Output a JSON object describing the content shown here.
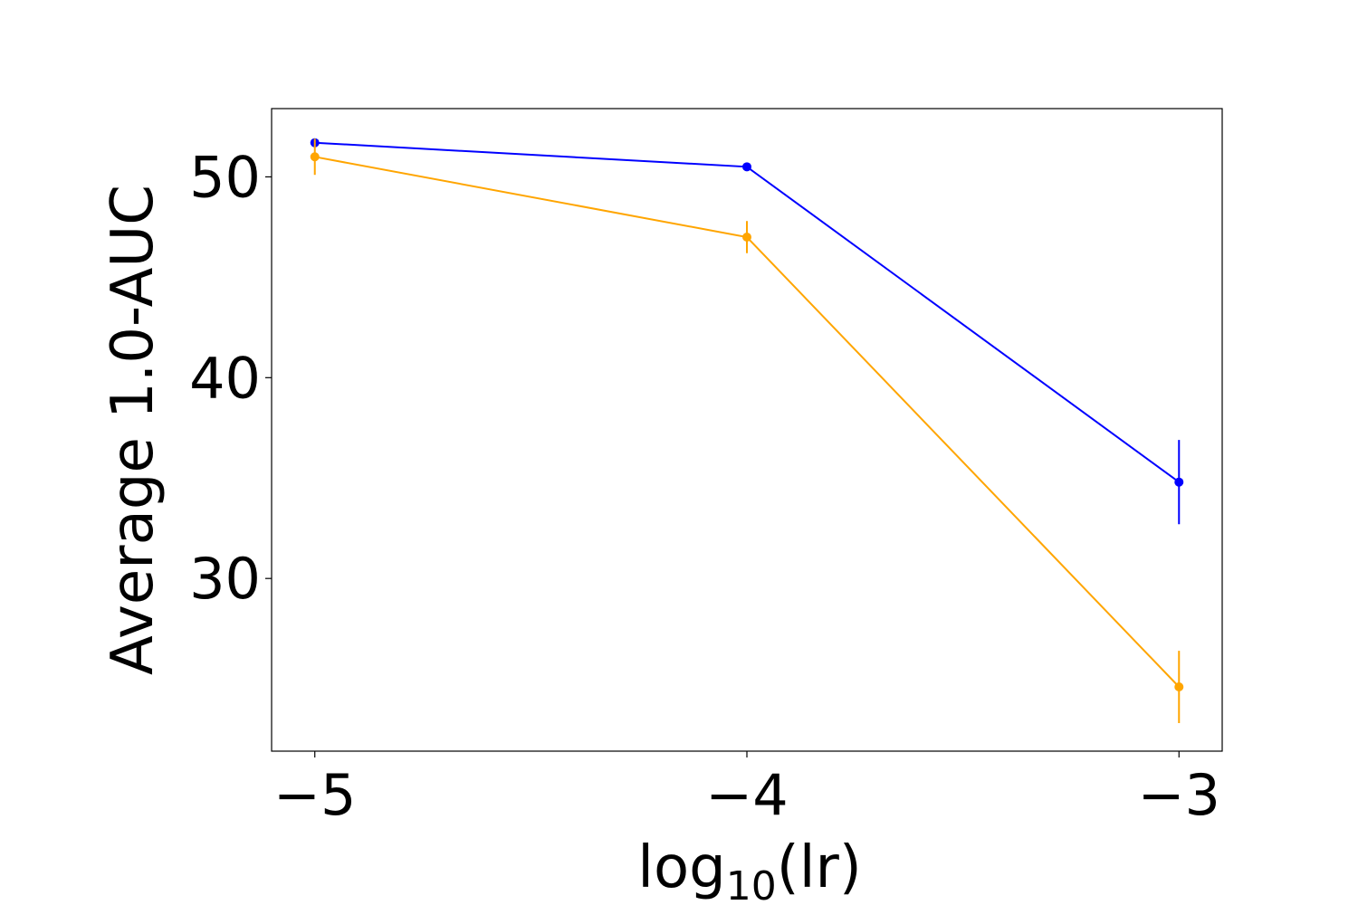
{
  "chart_data": {
    "type": "line",
    "title": "",
    "xlabel": {
      "base": "log",
      "subscript": "10",
      "rest": "(lr)"
    },
    "ylabel": "Average 1.0-AUC",
    "x": [
      -5,
      -4,
      -3
    ],
    "x_ticks": [
      -5,
      -4,
      -3
    ],
    "x_tick_labels": [
      "−5",
      "−4",
      "−3"
    ],
    "y_ticks": [
      30,
      40,
      50
    ],
    "y_tick_labels": [
      "30",
      "40",
      "50"
    ],
    "xlim": [
      -5.1,
      -2.9
    ],
    "ylim": [
      21.4,
      53.4
    ],
    "grid": false,
    "series": [
      {
        "color": "#0000ff",
        "values": [
          51.7,
          50.5,
          34.8
        ],
        "errors": [
          0.2,
          0.2,
          2.1
        ]
      },
      {
        "color": "#ffa500",
        "values": [
          51.0,
          47.0,
          24.6
        ],
        "errors": [
          0.9,
          0.8,
          1.8
        ]
      }
    ]
  }
}
